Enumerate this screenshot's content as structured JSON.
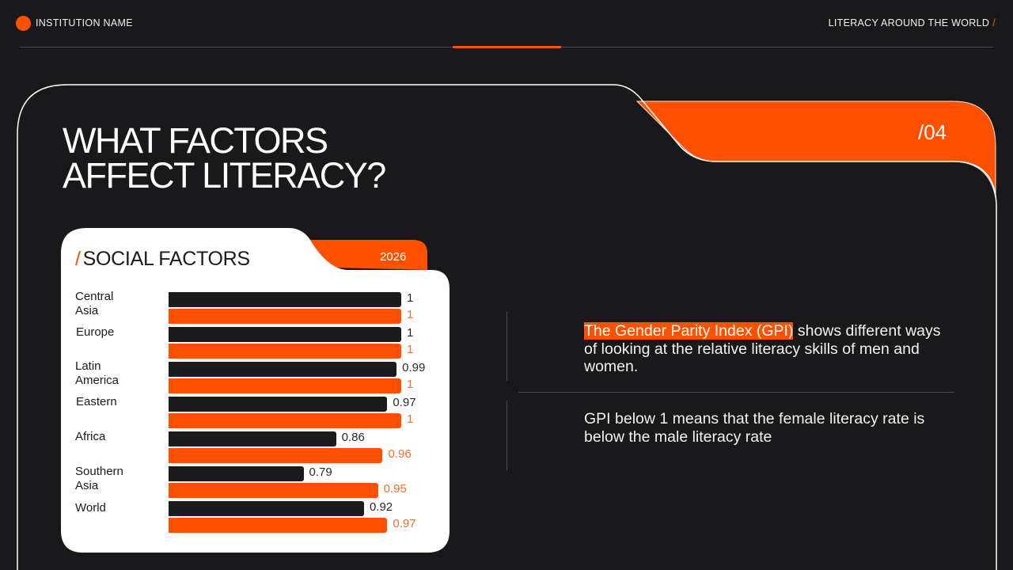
{
  "header": {
    "institution": "INSTITUTION NAME",
    "presentation_title": "LITERACY AROUND THE WORLD",
    "presentation_title_slash": "/"
  },
  "slide": {
    "title": "WHAT FACTORS\nAFFECT LITERACY?",
    "page_number": "/04"
  },
  "card": {
    "slash": "/",
    "title": "SOCIAL FACTORS",
    "year": "2026"
  },
  "info": {
    "paragraph1_highlight": "The Gender Parity Index (GPI)",
    "paragraph1_rest": " shows different ways of looking at the relative literacy skills of men and women.",
    "paragraph2": "GPI below 1 means that the female literacy rate is below the male literacy rate"
  },
  "colors": {
    "accent": "#ff5000",
    "background": "#19191b",
    "card": "#ffffff",
    "bar_dark": "#1b1b1d"
  },
  "chart_data": {
    "type": "bar",
    "orientation": "horizontal",
    "title": "SOCIAL FACTORS",
    "subtitle": "2026",
    "categories": [
      "Central\nAsia",
      "Europe",
      "Latin\nAmerica",
      "Eastern",
      "Africa",
      "Southern\nAsia",
      "World"
    ],
    "series": [
      {
        "name": "dark",
        "color": "#1b1b1d",
        "values": [
          1,
          1,
          0.99,
          0.97,
          0.86,
          0.79,
          0.92
        ],
        "labels": [
          "1",
          "1",
          "0.99",
          "0.97",
          "0.86",
          "0.79",
          "0.92"
        ]
      },
      {
        "name": "orange",
        "color": "#ff5000",
        "values": [
          1,
          1,
          1,
          1,
          0.96,
          0.95,
          0.97
        ],
        "labels": [
          "1",
          "1",
          "1",
          "1",
          "0.96",
          "0.95",
          "0.97"
        ]
      }
    ],
    "xlim": [
      0.5,
      1
    ],
    "grid": false,
    "legend": "none"
  }
}
